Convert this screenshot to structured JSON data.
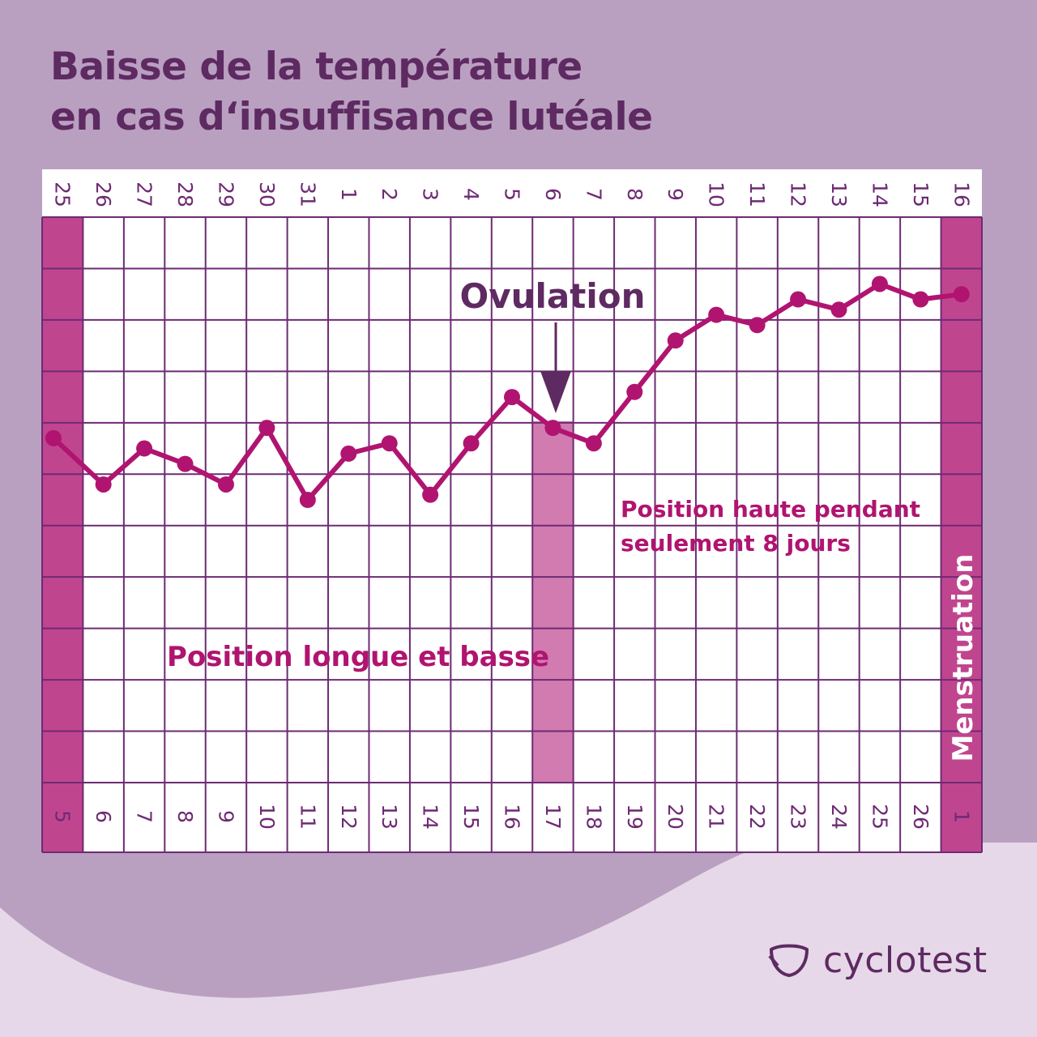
{
  "title": {
    "line1": "Baisse de la température",
    "line2": "en cas d‘insuffisance lutéale"
  },
  "colors": {
    "background": "#baa0c0",
    "background_light": "#e6d8e8",
    "grid": "#6e2a74",
    "accent": "#c0458f",
    "curve": "#b01470",
    "ovulation_band": "#d27bb0",
    "dark_purple": "#5e2a62"
  },
  "chart_data": {
    "type": "line",
    "title": "Baisse de la température en cas d‘insuffisance lutéale",
    "dates": [
      "25",
      "26",
      "27",
      "28",
      "29",
      "30",
      "31",
      "1",
      "2",
      "3",
      "4",
      "5",
      "6",
      "7",
      "8",
      "9",
      "10",
      "11",
      "12",
      "13",
      "14",
      "15",
      "16"
    ],
    "cycle_days": [
      "5",
      "6",
      "7",
      "8",
      "9",
      "10",
      "11",
      "12",
      "13",
      "14",
      "15",
      "16",
      "17",
      "18",
      "19",
      "20",
      "21",
      "22",
      "23",
      "24",
      "25",
      "26",
      "1"
    ],
    "temperature_rows": 11,
    "temperature_level": [
      6.7,
      5.8,
      6.5,
      6.2,
      5.8,
      6.9,
      5.5,
      6.4,
      6.6,
      5.6,
      6.6,
      7.5,
      6.9,
      6.6,
      7.6,
      8.6,
      9.1,
      8.9,
      9.4,
      9.2,
      9.7,
      9.4,
      9.5
    ],
    "ylim": [
      0,
      11
    ],
    "xlabel": "",
    "ylabel": "",
    "grid": true,
    "menstruation_columns": [
      0,
      22
    ],
    "ovulation_column": 12,
    "annotations": {
      "ovulation": "Ovulation",
      "low_phase": "Position longue et basse",
      "high_phase_line1": "Position haute pendant",
      "high_phase_line2": "seulement 8 jours",
      "menstruation": "Menstruation"
    }
  },
  "logo": {
    "text": "cyclotest"
  }
}
